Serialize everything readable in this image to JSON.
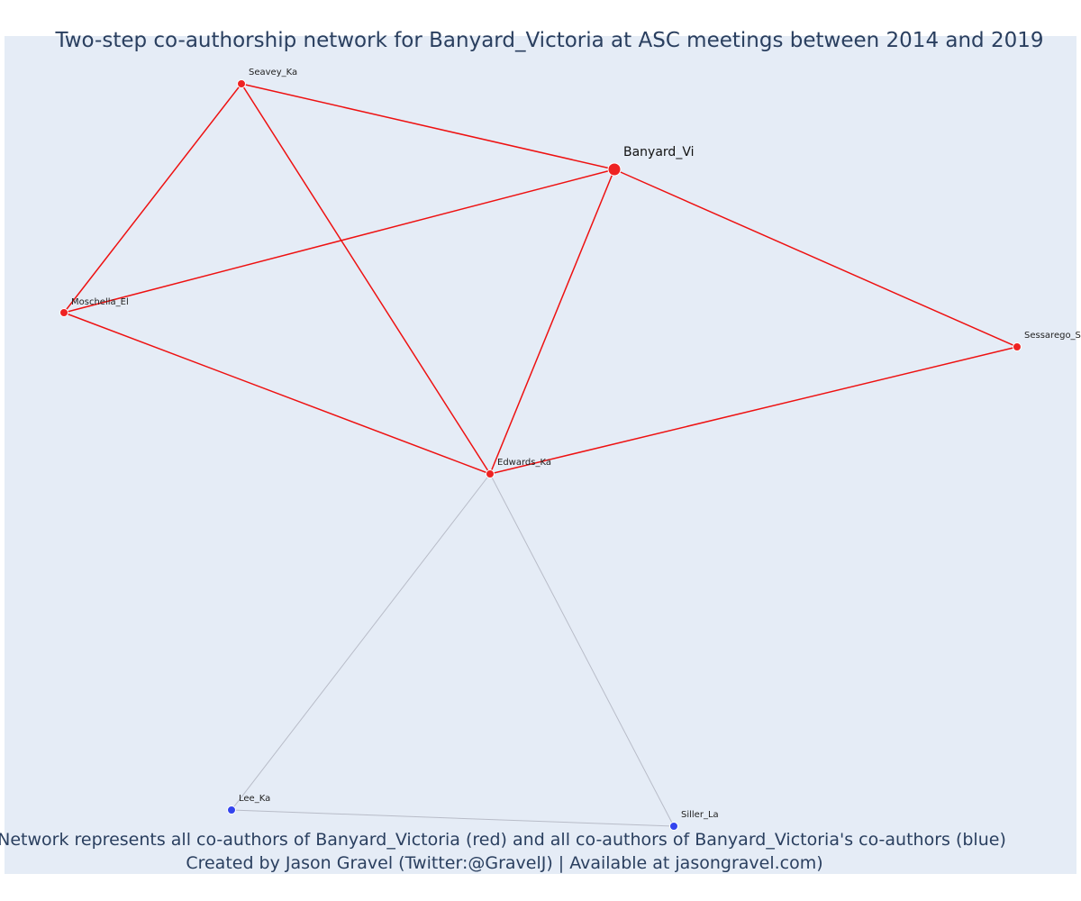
{
  "title": "Two-step co-authorship network for Banyard_Victoria at ASC meetings between 2014 and 2019",
  "caption": {
    "line1": "Network represents all co-authors of Banyard_Victoria (red) and all co-authors of Banyard_Victoria's co-authors (blue)",
    "line2": "Created by Jason Gravel (Twitter:@GravelJ) | Available at jasongravel.com)"
  },
  "colors": {
    "background": "#e5ecf6",
    "title": "#2a3f5f",
    "direct_node": "#ee2222",
    "direct_edge": "#ee1111",
    "second_node": "#3344ee",
    "second_edge": "#b8bcc8"
  },
  "network": {
    "focal": "Banyard_Vi",
    "nodes": [
      {
        "id": "Banyard_Vi",
        "label": "Banyard_Vi",
        "group": "focal"
      },
      {
        "id": "Seavey_Ka",
        "label": "Seavey_Ka",
        "group": "direct"
      },
      {
        "id": "Moschella_El",
        "label": "Moschella_El",
        "group": "direct"
      },
      {
        "id": "Sessarego_St",
        "label": "Sessarego_St",
        "group": "direct"
      },
      {
        "id": "Edwards_Ka",
        "label": "Edwards_Ka",
        "group": "direct"
      },
      {
        "id": "Lee_Ka",
        "label": "Lee_Ka",
        "group": "second"
      },
      {
        "id": "Siller_La",
        "label": "Siller_La",
        "group": "second"
      }
    ],
    "edges": [
      {
        "source": "Seavey_Ka",
        "target": "Banyard_Vi",
        "group": "direct"
      },
      {
        "source": "Seavey_Ka",
        "target": "Moschella_El",
        "group": "direct"
      },
      {
        "source": "Seavey_Ka",
        "target": "Edwards_Ka",
        "group": "direct"
      },
      {
        "source": "Moschella_El",
        "target": "Banyard_Vi",
        "group": "direct"
      },
      {
        "source": "Moschella_El",
        "target": "Edwards_Ka",
        "group": "direct"
      },
      {
        "source": "Banyard_Vi",
        "target": "Edwards_Ka",
        "group": "direct"
      },
      {
        "source": "Banyard_Vi",
        "target": "Sessarego_St",
        "group": "direct"
      },
      {
        "source": "Edwards_Ka",
        "target": "Sessarego_St",
        "group": "direct"
      },
      {
        "source": "Edwards_Ka",
        "target": "Lee_Ka",
        "group": "second"
      },
      {
        "source": "Edwards_Ka",
        "target": "Siller_La",
        "group": "second"
      },
      {
        "source": "Lee_Ka",
        "target": "Siller_La",
        "group": "second"
      }
    ]
  }
}
